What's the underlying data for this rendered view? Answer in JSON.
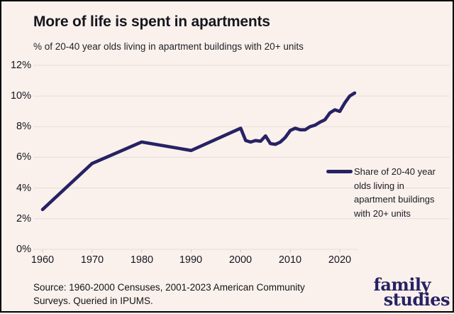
{
  "header": {
    "title": "More of life is spent in apartments",
    "subtitle": "% of 20-40 year olds living in apartment buildings with 20+ units"
  },
  "chart_data": {
    "type": "line",
    "title": "More of life is spent in apartments",
    "subtitle": "% of 20-40 year olds living in apartment buildings with 20+ units",
    "x": [
      1960,
      1970,
      1980,
      1990,
      2000,
      2001,
      2002,
      2003,
      2004,
      2005,
      2006,
      2007,
      2008,
      2009,
      2010,
      2011,
      2012,
      2013,
      2014,
      2015,
      2016,
      2017,
      2018,
      2019,
      2020,
      2021,
      2022,
      2023
    ],
    "series": [
      {
        "name": "Share of 20-40 year olds living in apartment buildings with 20+ units",
        "values": [
          2.6,
          5.6,
          7.0,
          6.45,
          7.9,
          7.1,
          7.0,
          7.1,
          7.05,
          7.4,
          6.9,
          6.85,
          7.0,
          7.3,
          7.75,
          7.9,
          7.8,
          7.8,
          8.0,
          8.1,
          8.3,
          8.45,
          8.9,
          9.1,
          9.0,
          9.55,
          10.0,
          10.2
        ]
      }
    ],
    "xlabel": "",
    "ylabel": "",
    "xlim": [
      1958,
      2025
    ],
    "ylim": [
      0,
      12
    ],
    "grid": "horizontal",
    "legend_position": "right",
    "line_color": "#272264",
    "x_ticks": [
      1960,
      1970,
      1980,
      1990,
      2000,
      2010,
      2020
    ],
    "x_tick_labels": [
      "1960",
      "1970",
      "1980",
      "1990",
      "2000",
      "2010",
      "2020"
    ],
    "y_ticks": [
      0,
      2,
      4,
      6,
      8,
      10,
      12
    ],
    "y_tick_labels": [
      "0%",
      "2%",
      "4%",
      "6%",
      "8%",
      "10%",
      "12%"
    ]
  },
  "legend": {
    "lines": [
      "Share of 20-40 year",
      "olds living in",
      "apartment buildings",
      "with 20+ units"
    ]
  },
  "footer": {
    "source": "Source: 1960-2000 Censuses, 2001-2023 American Community Surveys. Queried in IPUMS.",
    "logo_line1": "family",
    "logo_line2": "studies"
  },
  "colors": {
    "background": "#faf1ec",
    "line": "#272264",
    "gridline": "#e7e0dc",
    "text": "#16161f",
    "border": "#000000"
  }
}
